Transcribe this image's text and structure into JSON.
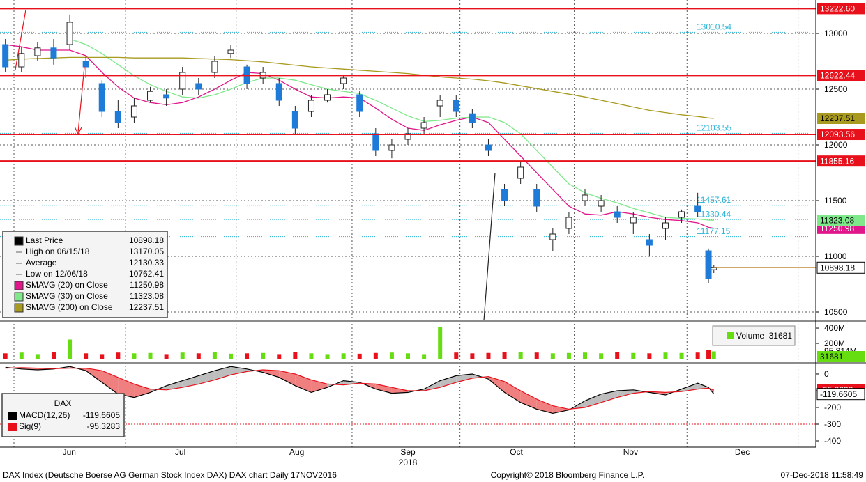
{
  "chart_data": [
    {
      "type": "candlestick",
      "x": [
        0,
        3,
        6,
        9,
        12,
        15,
        18,
        21,
        24,
        27,
        30,
        33,
        36,
        39,
        42,
        45,
        48,
        51,
        54,
        57,
        60,
        63,
        66,
        69,
        72,
        75,
        78,
        81,
        84,
        87,
        90,
        93,
        96,
        99,
        102,
        105,
        108,
        111,
        114,
        117,
        120,
        123,
        126,
        129,
        131,
        132
      ],
      "open": [
        12900,
        12700,
        12800,
        12870,
        12900,
        12750,
        12550,
        12300,
        12250,
        12400,
        12450,
        12500,
        12550,
        12650,
        12820,
        12700,
        12600,
        12550,
        12300,
        12300,
        12400,
        12550,
        12450,
        12100,
        11950,
        12050,
        12150,
        12350,
        12400,
        12280,
        12000,
        11600,
        11700,
        11600,
        11150,
        11250,
        11500,
        11450,
        11400,
        11300,
        11150,
        11250,
        11350,
        11450,
        11050,
        10880
      ],
      "high": [
        12950,
        12880,
        12920,
        12950,
        13170.05,
        12800,
        12580,
        12400,
        12420,
        12520,
        12500,
        12700,
        12600,
        12800,
        12900,
        12720,
        12700,
        12600,
        12350,
        12450,
        12500,
        12620,
        12480,
        12150,
        12050,
        12150,
        12250,
        12450,
        12450,
        12320,
        12050,
        11650,
        11850,
        11650,
        11250,
        11400,
        11600,
        11550,
        11450,
        11400,
        11200,
        11350,
        11420,
        11570,
        11070,
        10920
      ],
      "low": [
        12650,
        12650,
        12750,
        12720,
        12850,
        12600,
        12250,
        12150,
        12200,
        12380,
        12350,
        12450,
        12450,
        12600,
        12780,
        12500,
        12550,
        12350,
        12100,
        12250,
        12380,
        12500,
        12250,
        11900,
        11880,
        12000,
        12100,
        12250,
        12250,
        12150,
        11900,
        11450,
        11650,
        11400,
        11050,
        11200,
        11450,
        11400,
        11300,
        11200,
        11000,
        11150,
        11300,
        11350,
        10762.41,
        10850
      ],
      "close": [
        12700,
        12820,
        12870,
        12780,
        13100,
        12700,
        12300,
        12200,
        12350,
        12480,
        12420,
        12650,
        12500,
        12750,
        12850,
        12550,
        12650,
        12400,
        12150,
        12400,
        12450,
        12600,
        12300,
        11950,
        12000,
        12100,
        12200,
        12400,
        12300,
        12200,
        11950,
        11500,
        11800,
        11450,
        11200,
        11350,
        11550,
        11500,
        11350,
        11350,
        11100,
        11300,
        11400,
        11400,
        10800,
        10898.18
      ],
      "up_color": "#ffffff",
      "down_color": "#1e7bd8",
      "xlim": [
        -1,
        151
      ],
      "ylim": [
        10425,
        13300
      ],
      "yticks": [
        10500,
        11000,
        11500,
        12000,
        12500,
        13000
      ],
      "xticks": [
        {
          "value": 11.9,
          "label": "Jun"
        },
        {
          "value": 32.6,
          "label": "Jul"
        },
        {
          "value": 54.3,
          "label": "Aug"
        },
        {
          "value": 75,
          "label": "Sep"
        },
        {
          "value": 95.2,
          "label": "Oct"
        },
        {
          "value": 116.5,
          "label": "Nov"
        },
        {
          "value": 137.3,
          "label": "Dec"
        }
      ],
      "year_label": "2018",
      "xgrid": [
        1.6,
        22.4,
        43,
        64.6,
        84.7,
        106,
        127,
        147.7
      ],
      "series": [
        {
          "name": "SMAVG (20)  on Close",
          "color": "#e0168a",
          "text_color": "#ffffff",
          "values": [
            12900,
            12880,
            12850,
            12850,
            12850,
            12800,
            12650,
            12520,
            12420,
            12380,
            12360,
            12380,
            12430,
            12500,
            12580,
            12650,
            12640,
            12580,
            12500,
            12430,
            12420,
            12430,
            12420,
            12330,
            12230,
            12150,
            12130,
            12180,
            12220,
            12250,
            12200,
            12050,
            11900,
            11750,
            11600,
            11450,
            11380,
            11370,
            11400,
            11380,
            11350,
            11330,
            11320,
            11300,
            11260,
            11250.98
          ]
        },
        {
          "name": "SMAVG (30)  on Close",
          "color": "#7ee88a",
          "text_color": "#000000",
          "values": [
            null,
            null,
            null,
            null,
            12950,
            12900,
            12820,
            12720,
            12620,
            12540,
            12480,
            12430,
            12420,
            12450,
            12500,
            12560,
            12600,
            12600,
            12580,
            12540,
            12500,
            12480,
            12460,
            12400,
            12330,
            12260,
            12210,
            12220,
            12240,
            12250,
            12250,
            12200,
            12100,
            11950,
            11800,
            11650,
            11570,
            11520,
            11480,
            11430,
            11390,
            11350,
            11340,
            11335,
            11325,
            11323.08
          ]
        },
        {
          "name": "SMAVG (200)  on Close",
          "color": "#a89a1e",
          "text_color": "#000000",
          "values": [
            12760,
            12770,
            12775,
            12780,
            12785,
            12785,
            12785,
            12785,
            12780,
            12780,
            12780,
            12780,
            12775,
            12770,
            12765,
            12755,
            12745,
            12730,
            12715,
            12700,
            12690,
            12680,
            12670,
            12660,
            12650,
            12640,
            12625,
            12610,
            12600,
            12590,
            12575,
            12555,
            12530,
            12505,
            12480,
            12455,
            12430,
            12400,
            12370,
            12340,
            12310,
            12290,
            12270,
            12255,
            12242,
            12237.51
          ]
        }
      ],
      "legend": {
        "last": "Last Price",
        "high": "High on 06/15/18",
        "low": "Low on 12/06/18"
      },
      "stats": [
        {
          "label": "Average",
          "value": 12130.33
        }
      ],
      "levels": [
        {
          "value": 13222.6,
          "label": "13222.60"
        },
        12622.44,
        12093.56,
        11855.16
      ],
      "level_color": "#e8101a",
      "annotations": [
        13010.54,
        12103.55,
        11457.61,
        11330.44,
        11177.15
      ],
      "annotation_color": "#2bb5d8"
    },
    {
      "type": "bar",
      "name": "Volume",
      "x": [
        0,
        3,
        6,
        9,
        12,
        15,
        18,
        21,
        24,
        27,
        30,
        33,
        36,
        39,
        42,
        45,
        48,
        51,
        54,
        57,
        60,
        63,
        66,
        69,
        72,
        75,
        78,
        81,
        84,
        87,
        90,
        93,
        96,
        99,
        102,
        105,
        108,
        111,
        114,
        117,
        120,
        123,
        126,
        129,
        131,
        132
      ],
      "values": [
        70,
        80,
        60,
        90,
        250,
        70,
        60,
        80,
        70,
        75,
        60,
        80,
        70,
        90,
        65,
        70,
        75,
        60,
        85,
        70,
        60,
        70,
        65,
        75,
        80,
        70,
        60,
        410,
        80,
        70,
        75,
        85,
        90,
        80,
        70,
        75,
        80,
        70,
        85,
        75,
        70,
        80,
        75,
        80,
        110,
        95.814
      ],
      "up_color": "#66dd11",
      "down_color": "#e8101a",
      "xlim": [
        -1,
        151
      ],
      "ylim": [
        0,
        464
      ],
      "yticks": [
        {
          "value": 200,
          "label": "200M"
        },
        {
          "value": 400,
          "label": "400M"
        }
      ],
      "last_label": {
        "value": 95.814,
        "label": "95.814M"
      },
      "legend_value": 31681
    },
    {
      "type": "line",
      "title": "DAX",
      "x": [
        0,
        3,
        6,
        9,
        12,
        15,
        18,
        21,
        24,
        27,
        30,
        33,
        36,
        39,
        42,
        45,
        48,
        51,
        54,
        57,
        60,
        63,
        66,
        69,
        72,
        75,
        78,
        81,
        84,
        87,
        90,
        93,
        96,
        99,
        102,
        105,
        108,
        111,
        114,
        117,
        120,
        123,
        126,
        129,
        131,
        132
      ],
      "series": [
        {
          "name": "MACD(12,26)",
          "color": "#000000",
          "values": [
            40,
            30,
            25,
            30,
            45,
            20,
            -50,
            -120,
            -140,
            -110,
            -70,
            -40,
            -10,
            20,
            45,
            30,
            10,
            -20,
            -70,
            -110,
            -80,
            -40,
            -50,
            -90,
            -115,
            -110,
            -90,
            -40,
            -10,
            0,
            -30,
            -110,
            -170,
            -210,
            -235,
            -215,
            -160,
            -120,
            -100,
            -95,
            -110,
            -125,
            -90,
            -55,
            -80,
            -119.6605
          ]
        },
        {
          "name": "Sig(9)",
          "color": "#e8101a",
          "values": [
            35,
            38,
            35,
            32,
            35,
            35,
            20,
            -20,
            -60,
            -90,
            -95,
            -80,
            -60,
            -35,
            -5,
            15,
            25,
            20,
            0,
            -35,
            -60,
            -65,
            -55,
            -60,
            -80,
            -100,
            -100,
            -80,
            -50,
            -25,
            -15,
            -45,
            -100,
            -150,
            -190,
            -210,
            -200,
            -170,
            -140,
            -115,
            -105,
            -110,
            -105,
            -90,
            -85,
            -95.3283
          ]
        }
      ],
      "above_fill": "#bdbdbd",
      "below_fill": "#f07f7f",
      "xlim": [
        -1,
        151
      ],
      "ylim": [
        -437.5,
        54
      ],
      "yticks": [
        0,
        -100,
        -200,
        -300,
        -400
      ],
      "ref_line": -300
    }
  ],
  "footer": {
    "left": "DAX Index (Deutsche Boerse AG German Stock Index DAX) DAX chart  Daily 17NOV2016",
    "center": "Copyright© 2018 Bloomberg Finance L.P.",
    "right": "07-Dec-2018 11:58:49"
  }
}
